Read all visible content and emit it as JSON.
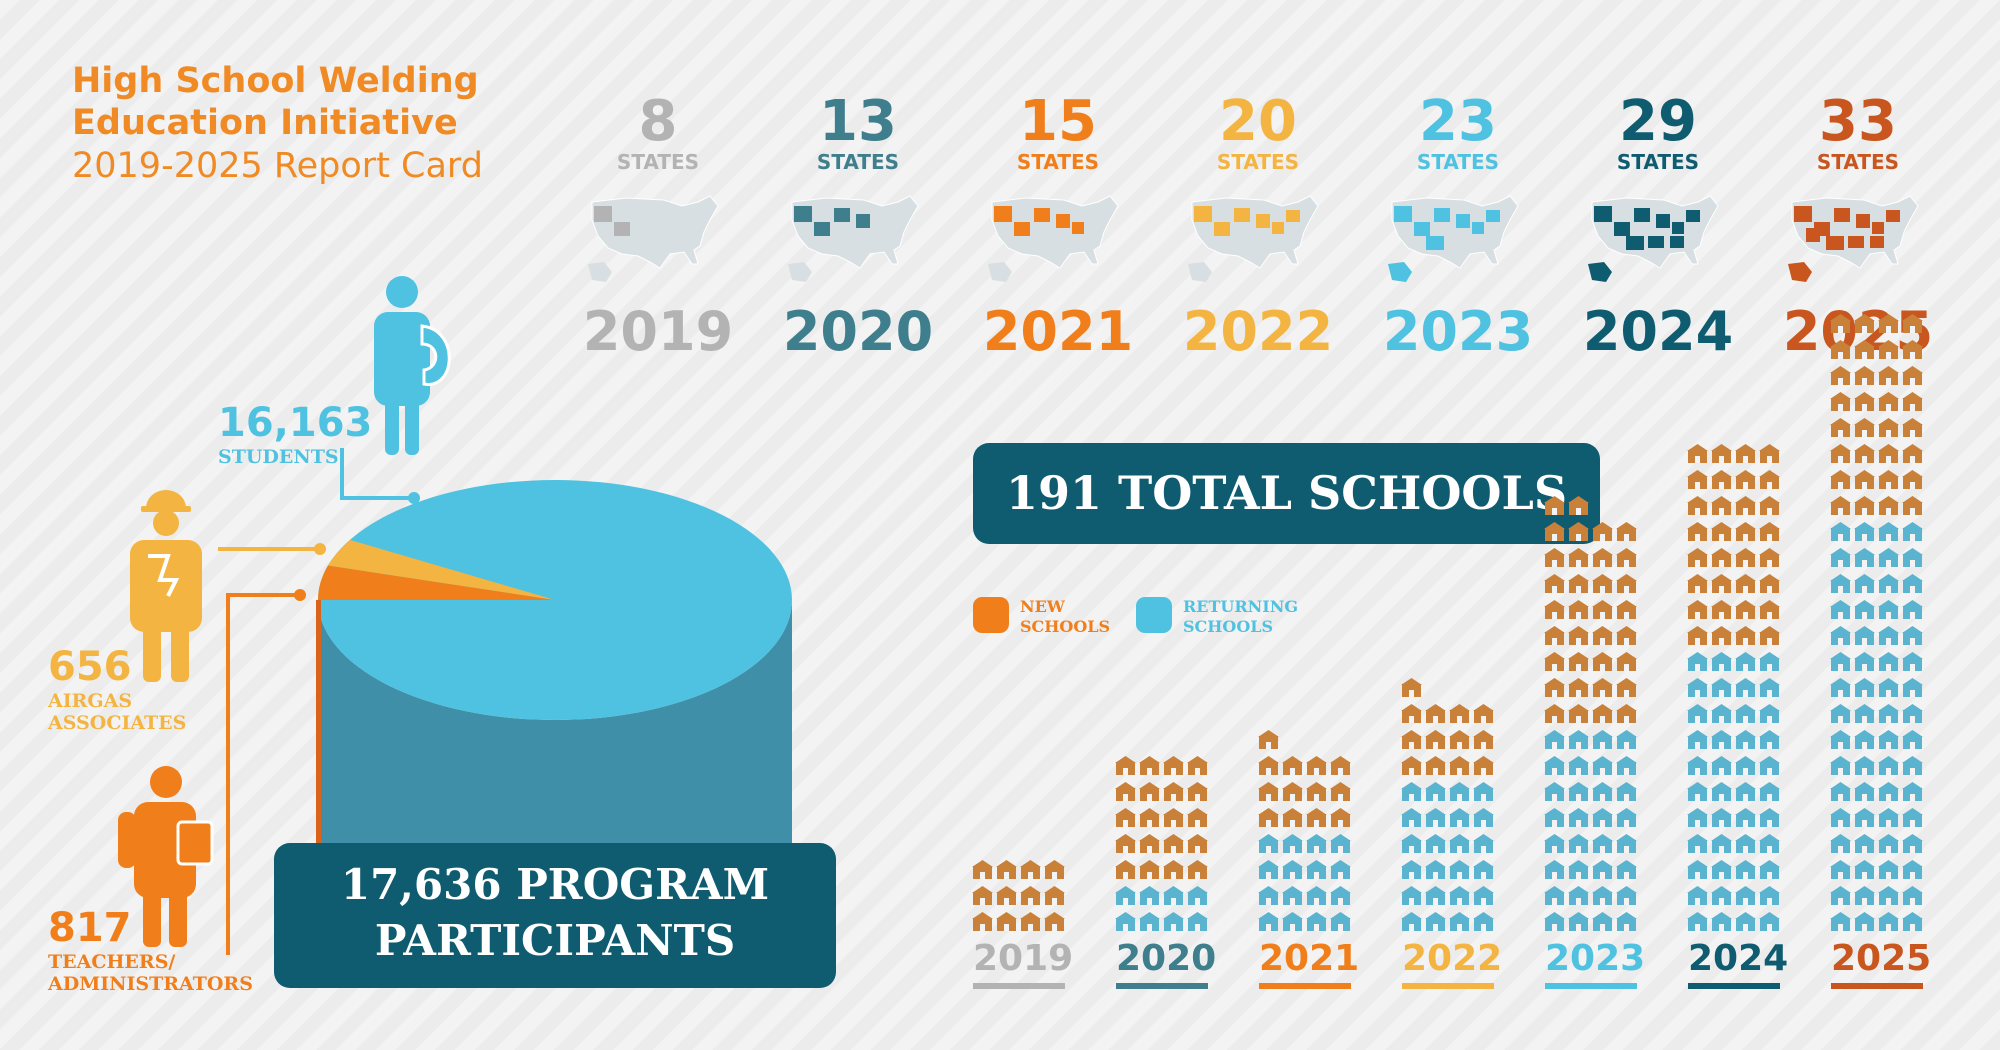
{
  "header": {
    "title_line1": "High School Welding",
    "title_line2": "Education Initiative",
    "subtitle": "2019-2025 Report Card"
  },
  "colors": {
    "orange": "#f07f1b",
    "title_orange": "#f08a24",
    "gray": "#b3b3b3",
    "slate": "#3f7e8c",
    "gold": "#f4b442",
    "cyan": "#4ec2e0",
    "navy": "#0f5c71",
    "rust": "#c8561e",
    "teal_dark": "#0f5c71"
  },
  "states_by_year": [
    {
      "year": "2019",
      "count": "8",
      "label": "STATES",
      "color": "#b3b3b3"
    },
    {
      "year": "2020",
      "count": "13",
      "label": "STATES",
      "color": "#3f7e8c"
    },
    {
      "year": "2021",
      "count": "15",
      "label": "STATES",
      "color": "#f07f1b"
    },
    {
      "year": "2022",
      "count": "20",
      "label": "STATES",
      "color": "#f4b442"
    },
    {
      "year": "2023",
      "count": "23",
      "label": "STATES",
      "color": "#4ec2e0"
    },
    {
      "year": "2024",
      "count": "29",
      "label": "STATES",
      "color": "#0f5c71"
    },
    {
      "year": "2025",
      "count": "33",
      "label": "STATES",
      "color": "#c8561e"
    }
  ],
  "participants": {
    "students": {
      "count": "16,163",
      "label": "STUDENTS"
    },
    "associates": {
      "count": "656",
      "label_line1": "AIRGAS",
      "label_line2": "ASSOCIATES"
    },
    "teachers": {
      "count": "817",
      "label_line1": "TEACHERS/",
      "label_line2": "ADMINISTRATORS"
    },
    "total_label_line1": "17,636 PROGRAM",
    "total_label_line2": "PARTICIPANTS"
  },
  "schools": {
    "total_label": "191 TOTAL SCHOOLS",
    "legend_new_line1": "NEW",
    "legend_new_line2": "SCHOOLS",
    "legend_returning_line1": "RETURNING",
    "legend_returning_line2": "SCHOOLS"
  },
  "chart_data": [
    {
      "type": "pie",
      "categories": [
        "STUDENTS",
        "AIRGAS ASSOCIATES",
        "TEACHERS/ADMINISTRATORS"
      ],
      "values": [
        16163,
        656,
        817
      ],
      "total": 17636
    },
    {
      "type": "bar",
      "categories": [
        "2019",
        "2020",
        "2021",
        "2022",
        "2023",
        "2024",
        "2025"
      ],
      "series": [
        {
          "name": "NEW SCHOOLS",
          "values": [
            12,
            20,
            13,
            13,
            34,
            32,
            32
          ]
        },
        {
          "name": "RETURNING SCHOOLS",
          "values": [
            0,
            8,
            16,
            24,
            32,
            44,
            64
          ]
        }
      ]
    }
  ]
}
